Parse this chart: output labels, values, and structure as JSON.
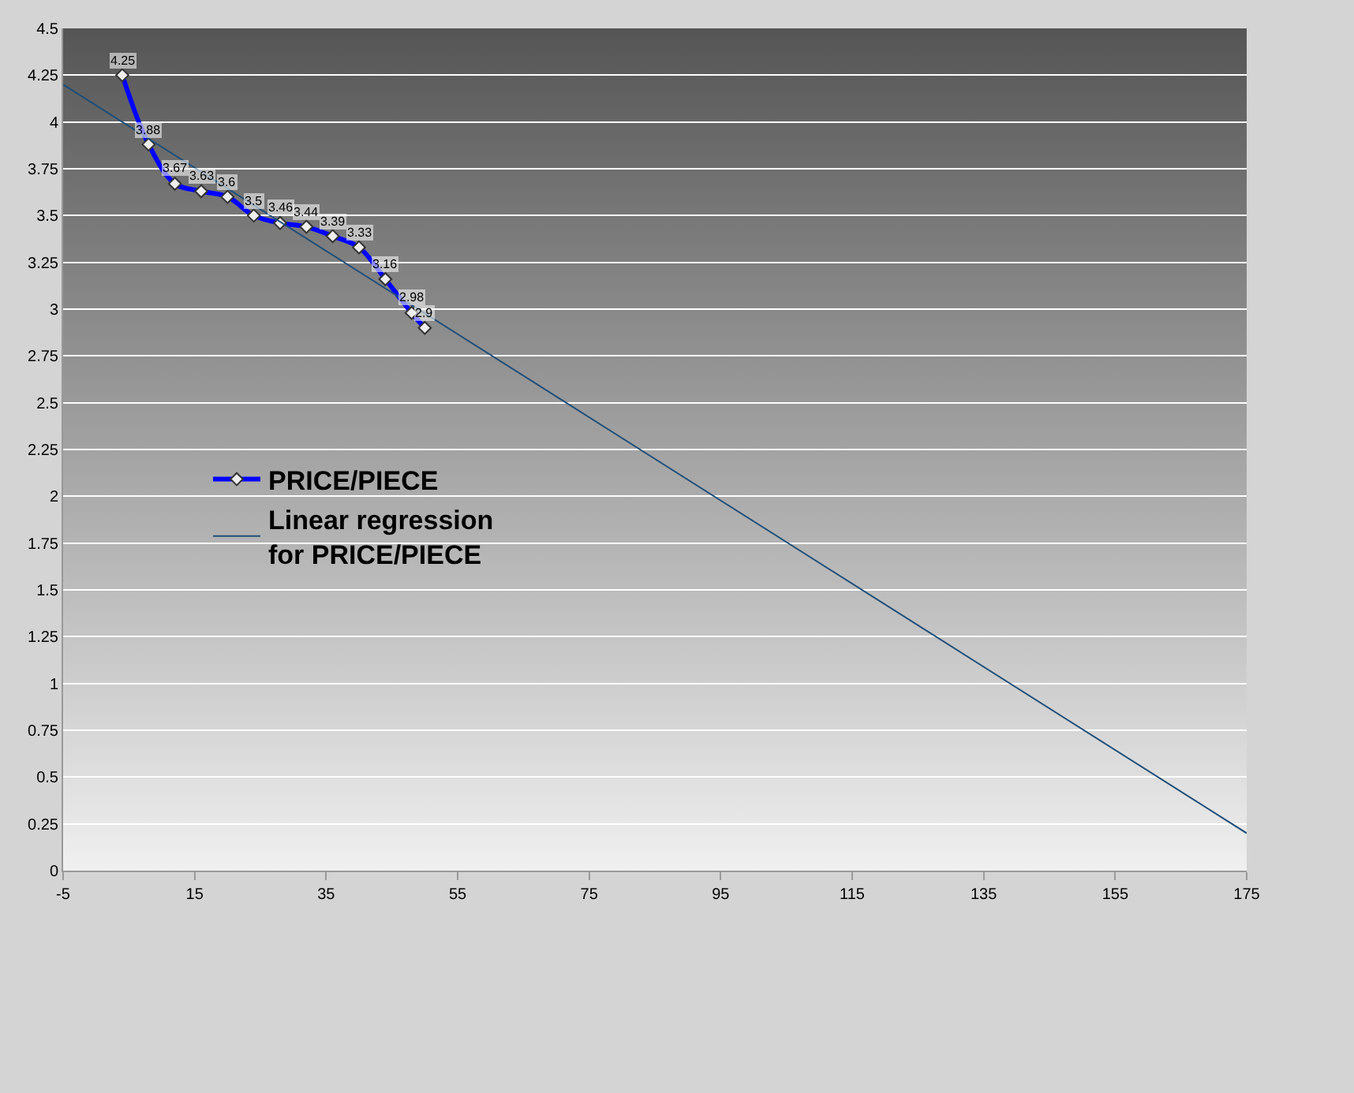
{
  "chart_data": {
    "type": "line",
    "xlim": [
      -5,
      175
    ],
    "xticks": [
      -5,
      15,
      35,
      55,
      75,
      95,
      115,
      135,
      155,
      175
    ],
    "ylim": [
      0,
      4.5
    ],
    "yticks": [
      0,
      0.25,
      0.5,
      0.75,
      1,
      1.25,
      1.5,
      1.75,
      2,
      2.25,
      2.5,
      2.75,
      3,
      3.25,
      3.5,
      3.75,
      4,
      4.25,
      4.5
    ],
    "grid": "y",
    "legend": "left",
    "series": [
      {
        "name": "PRICE/PIECE",
        "color": "#0000ff",
        "marker": "diamond",
        "x": [
          4,
          8,
          12,
          16,
          20,
          24,
          28,
          32,
          36,
          40,
          44,
          48,
          50
        ],
        "values": [
          4.25,
          3.88,
          3.67,
          3.63,
          3.6,
          3.5,
          3.46,
          3.44,
          3.39,
          3.33,
          3.16,
          2.98,
          2.9
        ],
        "value_labels": [
          "4.25",
          "3.88",
          "3.67",
          "3.63",
          "3.6",
          "3.5",
          "3.46",
          "3.44",
          "3.39",
          "3.33",
          "3.16",
          "2.98",
          "2.9"
        ]
      },
      {
        "name": "Linear regression for PRICE/PIECE",
        "type": "line",
        "color": "#1f4e79",
        "x": [
          -5,
          175
        ],
        "values": [
          4.2,
          0.2
        ]
      }
    ]
  }
}
